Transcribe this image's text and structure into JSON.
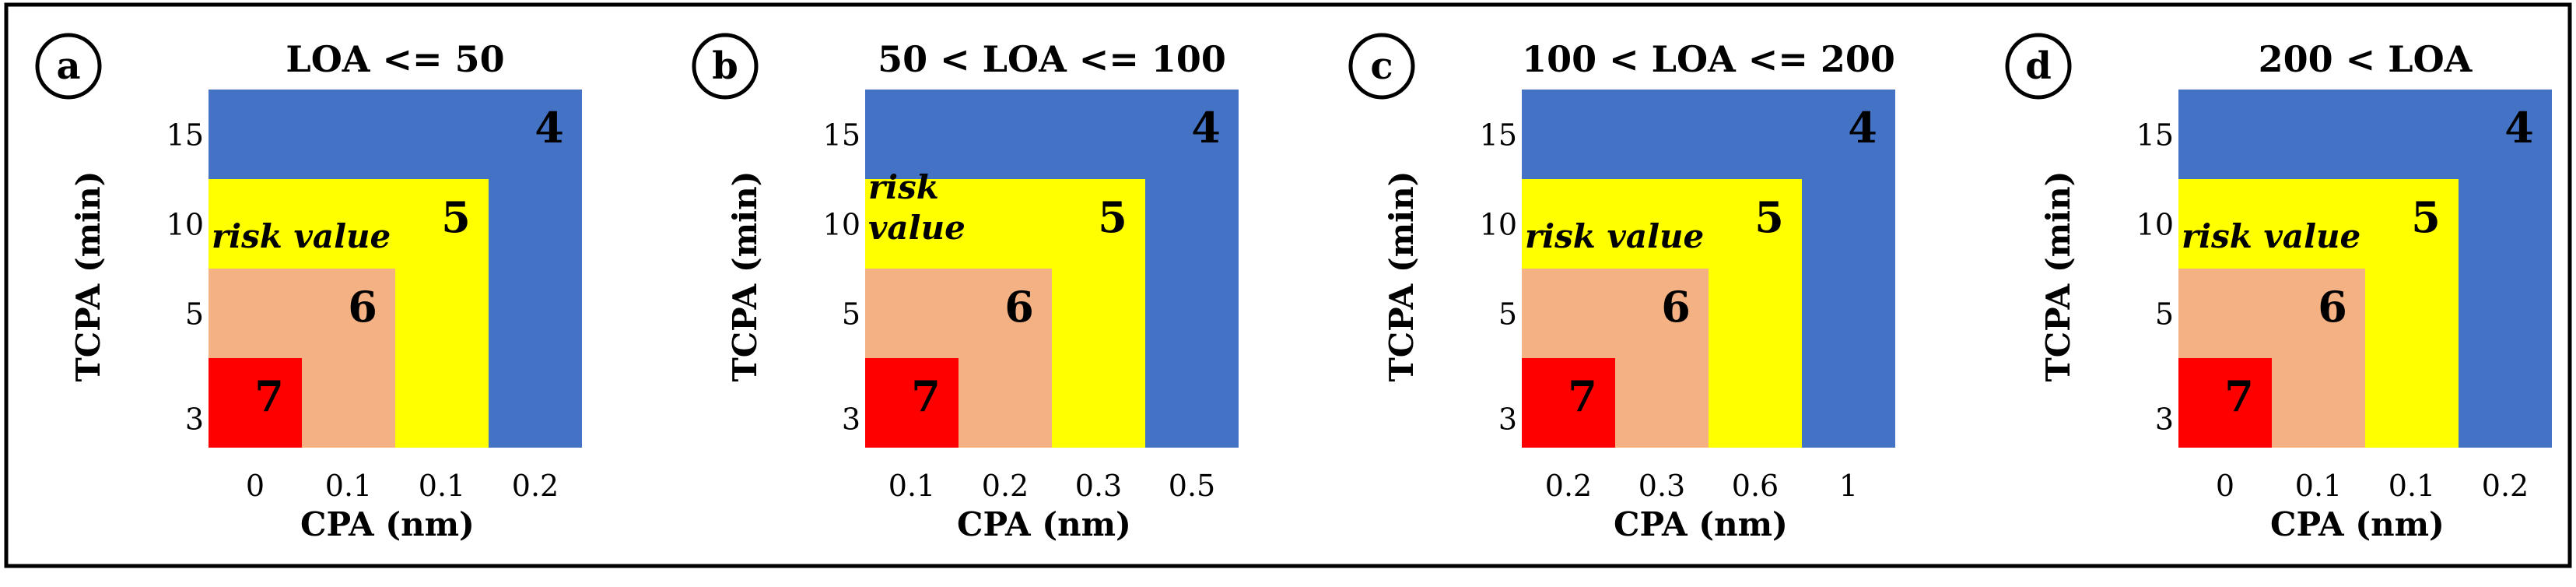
{
  "chart_data": [
    {
      "type": "heatmap",
      "panel_label": "a",
      "title": "LOA <= 50",
      "xlabel": "CPA (nm)",
      "ylabel": "TCPA (min)",
      "x_ticks": [
        "0",
        "0.1",
        "0.1",
        "0.2"
      ],
      "y_ticks": [
        "15",
        "10",
        "5",
        "3"
      ],
      "risk_label": "risk value",
      "risk_label_lines": [
        "risk value"
      ],
      "zones": [
        {
          "risk": "4",
          "x_extent": 4,
          "y_extent": 4,
          "color": "#4472C4"
        },
        {
          "risk": "5",
          "x_extent": 3,
          "y_extent": 3,
          "color": "#FFFF00"
        },
        {
          "risk": "6",
          "x_extent": 2,
          "y_extent": 2,
          "color": "#F4B183"
        },
        {
          "risk": "7",
          "x_extent": 1,
          "y_extent": 1,
          "color": "#FF0000"
        }
      ]
    },
    {
      "type": "heatmap",
      "panel_label": "b",
      "title": "50 < LOA <= 100",
      "xlabel": "CPA (nm)",
      "ylabel": "TCPA (min)",
      "x_ticks": [
        "0.1",
        "0.2",
        "0.3",
        "0.5"
      ],
      "y_ticks": [
        "15",
        "10",
        "5",
        "3"
      ],
      "risk_label": "risk value",
      "risk_label_lines": [
        "risk",
        "value"
      ],
      "zones": [
        {
          "risk": "4",
          "x_extent": 4,
          "y_extent": 4,
          "color": "#4472C4"
        },
        {
          "risk": "5",
          "x_extent": 3,
          "y_extent": 3,
          "color": "#FFFF00"
        },
        {
          "risk": "6",
          "x_extent": 2,
          "y_extent": 2,
          "color": "#F4B183"
        },
        {
          "risk": "7",
          "x_extent": 1,
          "y_extent": 1,
          "color": "#FF0000"
        }
      ]
    },
    {
      "type": "heatmap",
      "panel_label": "c",
      "title": "100 < LOA <= 200",
      "xlabel": "CPA (nm)",
      "ylabel": "TCPA (min)",
      "x_ticks": [
        "0.2",
        "0.3",
        "0.6",
        "1"
      ],
      "y_ticks": [
        "15",
        "10",
        "5",
        "3"
      ],
      "risk_label": "risk value",
      "risk_label_lines": [
        "risk value"
      ],
      "zones": [
        {
          "risk": "4",
          "x_extent": 4,
          "y_extent": 4,
          "color": "#4472C4"
        },
        {
          "risk": "5",
          "x_extent": 3,
          "y_extent": 3,
          "color": "#FFFF00"
        },
        {
          "risk": "6",
          "x_extent": 2,
          "y_extent": 2,
          "color": "#F4B183"
        },
        {
          "risk": "7",
          "x_extent": 1,
          "y_extent": 1,
          "color": "#FF0000"
        }
      ]
    },
    {
      "type": "heatmap",
      "panel_label": "d",
      "title": "200 < LOA",
      "xlabel": "CPA (nm)",
      "ylabel": "TCPA (min)",
      "x_ticks": [
        "0",
        "0.1",
        "0.1",
        "0.2"
      ],
      "y_ticks": [
        "15",
        "10",
        "5",
        "3"
      ],
      "risk_label": "risk value",
      "risk_label_lines": [
        "risk value"
      ],
      "zones": [
        {
          "risk": "4",
          "x_extent": 4,
          "y_extent": 4,
          "color": "#4472C4"
        },
        {
          "risk": "5",
          "x_extent": 3,
          "y_extent": 3,
          "color": "#FFFF00"
        },
        {
          "risk": "6",
          "x_extent": 2,
          "y_extent": 2,
          "color": "#F4B183"
        },
        {
          "risk": "7",
          "x_extent": 1,
          "y_extent": 1,
          "color": "#FF0000"
        }
      ]
    }
  ]
}
